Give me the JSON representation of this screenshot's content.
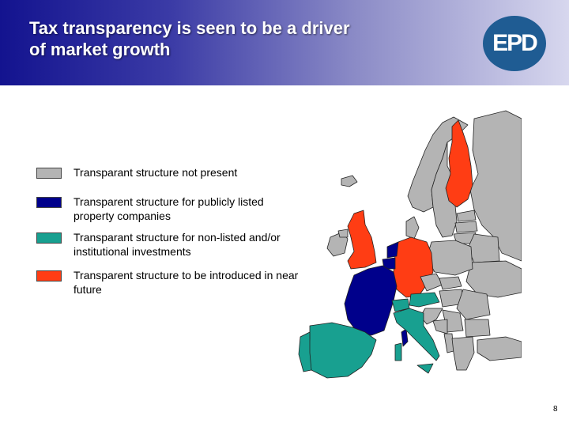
{
  "slide": {
    "title_line1": "Tax transparency is seen to be a driver",
    "title_line2": "of market growth",
    "logo_text": "EPD",
    "page_number": "8"
  },
  "legend": [
    {
      "label": "Transparant structure not present",
      "color": "#b4b4b4"
    },
    {
      "label": "Transparent structure for publicly listed property companies",
      "color": "#00008b"
    },
    {
      "label": "Transparant structure for non-listed and/or institutional investments",
      "color": "#18a090"
    },
    {
      "label": "Transparent structure to be introduced in near future",
      "color": "#ff3d14"
    }
  ],
  "map": {
    "colors": {
      "not_present": "#b4b4b4",
      "listed": "#00008b",
      "non_listed": "#18a090",
      "near_future": "#ff3d14",
      "border": "#222222"
    },
    "countries": {
      "not_present": [
        "Norway",
        "Sweden",
        "Iceland",
        "Ireland",
        "Northern Ireland",
        "Denmark",
        "Estonia",
        "Latvia",
        "Lithuania",
        "Belarus",
        "Ukraine",
        "Poland",
        "Czech Republic",
        "Slovakia",
        "Hungary",
        "Romania",
        "Moldova",
        "Bulgaria",
        "Serbia",
        "Croatia",
        "Bosnia",
        "Albania",
        "Macedonia",
        "Greece",
        "Turkey",
        "Russia"
      ],
      "listed": [
        "France",
        "Belgium",
        "Netherlands",
        "Corsica"
      ],
      "non_listed": [
        "Spain",
        "Portugal",
        "Italy",
        "Sicily",
        "Sardinia",
        "Austria",
        "Switzerland",
        "Luxembourg"
      ],
      "near_future": [
        "Finland",
        "United Kingdom",
        "Germany"
      ]
    }
  }
}
